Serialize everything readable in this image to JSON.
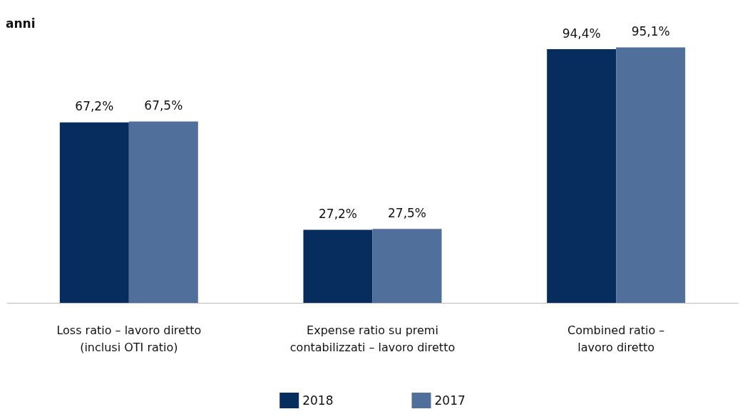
{
  "chart_data": {
    "type": "bar",
    "title": "anni",
    "categories": [
      "Loss ratio – lavoro diretto\n(inclusi OTI ratio)",
      "Expense ratio su premi\ncontabilizzati – lavoro diretto",
      "Combined ratio –\nlavoro diretto"
    ],
    "series": [
      {
        "name": "2018",
        "color": "#062d5e",
        "values": [
          67.2,
          27.2,
          94.4
        ],
        "value_labels": [
          "67,2%",
          "27,2%",
          "94,4%"
        ]
      },
      {
        "name": "2017",
        "color": "#506f9a",
        "values": [
          67.5,
          27.5,
          95.1
        ],
        "value_labels": [
          "67,5%",
          "27,5%",
          "95,1%"
        ]
      }
    ],
    "legend": "bottom",
    "grid": false
  }
}
